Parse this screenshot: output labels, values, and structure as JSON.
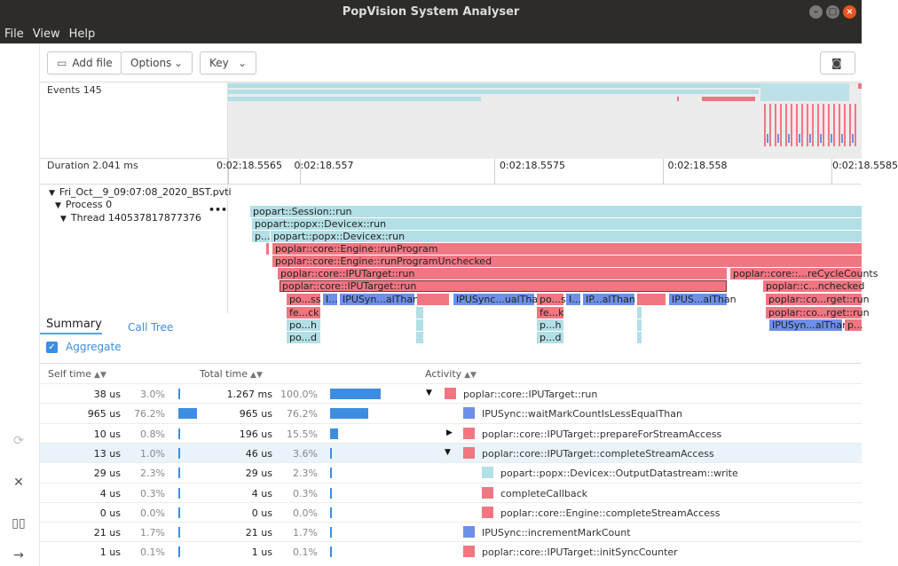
{
  "window": {
    "title": "PopVision System Analyser"
  },
  "menu": [
    "File",
    "View",
    "Help"
  ],
  "toolbar": {
    "add_file": "Add file",
    "options": "Options",
    "key": "Key"
  },
  "overview": {
    "label": "Events 145"
  },
  "axis": {
    "label": "Duration 2.041 ms",
    "ticks": [
      "0:02:18.5565",
      "0:02:18.557",
      "0:02:18.5575",
      "0:02:18.558",
      "0:02:18.5585"
    ]
  },
  "tree": {
    "file": "Fri_Oct__9_09:07:08_2020_BST.pvti",
    "process": "Process 0",
    "thread": "Thread 140537817877376",
    "more": "•••"
  },
  "flame": {
    "rows": [
      [
        {
          "t": "popart::Session::run",
          "c": "teal"
        }
      ],
      [
        {
          "t": "popart::popx::Devicex::run",
          "c": "teal"
        }
      ],
      [
        {
          "t": "p...",
          "c": "teal"
        },
        {
          "t": "popart::popx::Devicex::run",
          "c": "teal"
        }
      ],
      [
        {
          "t": "poplar::core::Engine::runProgram",
          "c": "red"
        }
      ],
      [
        {
          "t": "poplar::core::Engine::runProgramUnchecked",
          "c": "red"
        }
      ],
      [
        {
          "t": "poplar::core::IPUTarget::run",
          "c": "red"
        },
        {
          "t": "poplar::core::...reCycleCounts",
          "c": "red"
        }
      ],
      [
        {
          "t": "poplar::core::IPUTarget::run",
          "c": "red"
        },
        {
          "t": "poplar::c...nchecked",
          "c": "red"
        }
      ],
      [
        {
          "t": "po...ss",
          "c": "red"
        },
        {
          "t": "I...",
          "c": "blue"
        },
        {
          "t": "IPUSyn...alThan",
          "c": "blue"
        },
        {
          "t": "IPUSync...ualThan",
          "c": "blue"
        },
        {
          "t": "po...ss",
          "c": "red"
        },
        {
          "t": "I...",
          "c": "blue"
        },
        {
          "t": "IP...alThan",
          "c": "blue"
        },
        {
          "t": "IPUS...alThan",
          "c": "blue"
        },
        {
          "t": "poplar::co...rget::run",
          "c": "red"
        }
      ],
      [
        {
          "t": "fe...ck",
          "c": "red"
        },
        {
          "t": "fe...k",
          "c": "red"
        },
        {
          "t": "poplar::co...rget::run",
          "c": "red"
        }
      ],
      [
        {
          "t": "po...h",
          "c": "teal"
        },
        {
          "t": "p...h",
          "c": "teal"
        },
        {
          "t": "IPUSyn...alThan",
          "c": "blue"
        },
        {
          "t": "p...",
          "c": "red"
        }
      ],
      [
        {
          "t": "po...d",
          "c": "teal"
        },
        {
          "t": "p...d",
          "c": "teal"
        }
      ]
    ]
  },
  "tabs": {
    "summary": "Summary",
    "call_tree": "Call Tree",
    "aggregate": "Aggregate"
  },
  "table": {
    "headers": {
      "self": "Self time",
      "total": "Total time",
      "activity": "Activity"
    },
    "rows": [
      {
        "self": "38 us",
        "self_pct": "3.0%",
        "self_frac": 0.03,
        "total": "1.267 ms",
        "total_pct": "100.0%",
        "total_frac": 1.0,
        "activity": "poplar::core::IPUTarget::run",
        "color": "#f07682",
        "indent": 0,
        "expander": "down",
        "selected": false
      },
      {
        "self": "965 us",
        "self_pct": "76.2%",
        "self_frac": 0.762,
        "total": "965 us",
        "total_pct": "76.2%",
        "total_frac": 0.762,
        "activity": "IPUSync::waitMarkCountIsLessEqualThan",
        "color": "#6d8fe8",
        "indent": 1,
        "expander": "",
        "selected": false
      },
      {
        "self": "10 us",
        "self_pct": "0.8%",
        "self_frac": 0.008,
        "total": "196 us",
        "total_pct": "15.5%",
        "total_frac": 0.155,
        "activity": "poplar::core::IPUTarget::prepareForStreamAccess",
        "color": "#f07682",
        "indent": 1,
        "expander": "right",
        "selected": false
      },
      {
        "self": "13 us",
        "self_pct": "1.0%",
        "self_frac": 0.01,
        "total": "46 us",
        "total_pct": "3.6%",
        "total_frac": 0.036,
        "activity": "poplar::core::IPUTarget::completeStreamAccess",
        "color": "#f07682",
        "indent": 1,
        "expander": "down",
        "selected": true
      },
      {
        "self": "29 us",
        "self_pct": "2.3%",
        "self_frac": 0.023,
        "total": "29 us",
        "total_pct": "2.3%",
        "total_frac": 0.023,
        "activity": "popart::popx::Devicex::OutputDatastream::write",
        "color": "#b3dfe6",
        "indent": 2,
        "expander": "",
        "selected": false
      },
      {
        "self": "4 us",
        "self_pct": "0.3%",
        "self_frac": 0.003,
        "total": "4 us",
        "total_pct": "0.3%",
        "total_frac": 0.003,
        "activity": "completeCallback",
        "color": "#f07682",
        "indent": 2,
        "expander": "",
        "selected": false
      },
      {
        "self": "0 us",
        "self_pct": "0.0%",
        "self_frac": 0.0,
        "total": "0 us",
        "total_pct": "0.0%",
        "total_frac": 0.0,
        "activity": "poplar::core::Engine::completeStreamAccess",
        "color": "#f07682",
        "indent": 2,
        "expander": "",
        "selected": false
      },
      {
        "self": "21 us",
        "self_pct": "1.7%",
        "self_frac": 0.017,
        "total": "21 us",
        "total_pct": "1.7%",
        "total_frac": 0.017,
        "activity": "IPUSync::incrementMarkCount",
        "color": "#6d8fe8",
        "indent": 1,
        "expander": "",
        "selected": false
      },
      {
        "self": "1 us",
        "self_pct": "0.1%",
        "self_frac": 0.001,
        "total": "1 us",
        "total_pct": "0.1%",
        "total_frac": 0.001,
        "activity": "poplar::core::IPUTarget::initSyncCounter",
        "color": "#f07682",
        "indent": 1,
        "expander": "",
        "selected": false
      }
    ]
  },
  "colors": {
    "teal": "#b3dfe6",
    "red": "#f07682",
    "blue": "#6d8fe8",
    "accent": "#3d8ee0"
  }
}
